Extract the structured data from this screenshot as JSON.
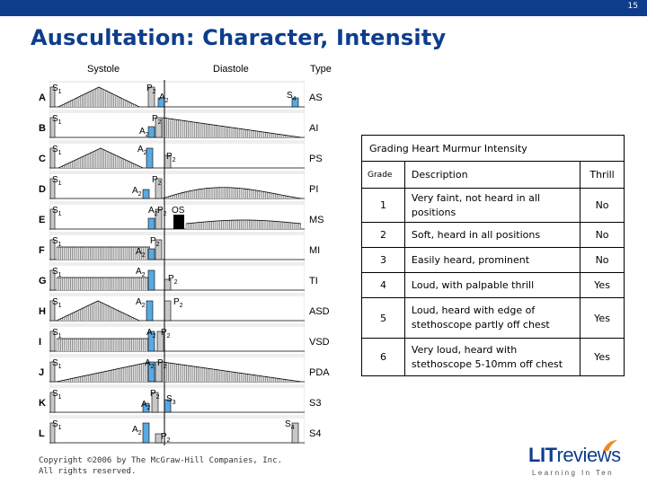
{
  "header": {
    "page_number": "15"
  },
  "slide": {
    "title": "Auscultation: Character, Intensity"
  },
  "figure": {
    "headers": {
      "systole": "Systole",
      "diastole": "Diastole",
      "type": "Type"
    },
    "rows": [
      {
        "letter": "A",
        "type": "AS"
      },
      {
        "letter": "B",
        "type": "AI"
      },
      {
        "letter": "C",
        "type": "PS"
      },
      {
        "letter": "D",
        "type": "PI"
      },
      {
        "letter": "E",
        "type": "MS"
      },
      {
        "letter": "F",
        "type": "MI"
      },
      {
        "letter": "G",
        "type": "TI"
      },
      {
        "letter": "H",
        "type": "ASD"
      },
      {
        "letter": "I",
        "type": "VSD"
      },
      {
        "letter": "J",
        "type": "PDA"
      },
      {
        "letter": "K",
        "type": "S3"
      },
      {
        "letter": "L",
        "type": "S4"
      }
    ],
    "copyright_line1": "Copyright ©2006 by The McGraw-Hill Companies, Inc.",
    "copyright_line2": "All rights reserved.",
    "colors": {
      "bar_gray": "#c8c8c8",
      "bar_blue": "#5aa9e0",
      "shade": "#e6e6e6",
      "line": "#000000"
    }
  },
  "grading_table": {
    "caption": "Grading Heart Murmur Intensity",
    "headers": {
      "grade": "Grade",
      "description": "Description",
      "thrill": "Thrill"
    },
    "rows": [
      {
        "grade": "1",
        "description": "Very faint, not heard in all positions",
        "thrill": "No"
      },
      {
        "grade": "2",
        "description": "Soft, heard in all positions",
        "thrill": "No"
      },
      {
        "grade": "3",
        "description": "Easily heard, prominent",
        "thrill": "No"
      },
      {
        "grade": "4",
        "description": "Loud, with palpable thrill",
        "thrill": "Yes"
      },
      {
        "grade": "5",
        "description": "Loud, heard with edge of stethoscope partly off chest",
        "thrill": "Yes"
      },
      {
        "grade": "6",
        "description": "Very loud, heard with stethoscope 5-10mm off chest",
        "thrill": "Yes"
      }
    ]
  },
  "logo": {
    "brand_bold": "LIT",
    "brand_light": "reviews",
    "tagline": "Learning In Ten"
  },
  "theme": {
    "brand_blue": "#0e3d8c",
    "logo_orange": "#f08a1c"
  }
}
